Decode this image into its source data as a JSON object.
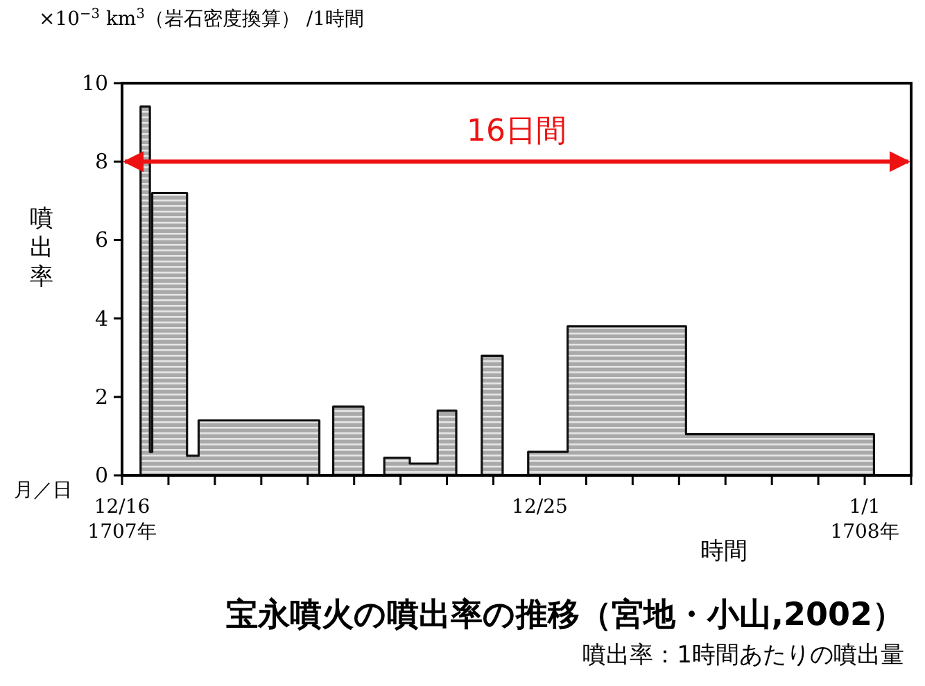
{
  "chart_data": {
    "type": "area",
    "title": "宝永噴火の噴出率の推移（宮地・小山,2002）",
    "xlabel": "時間",
    "ylabel": "噴出率",
    "annotations": [
      "×10$^{−3}$ km$^{3}$（岩石密度換算） /1時間",
      "月／日",
      "噴出率：1時間あたりの噴出量"
    ],
    "x": [
      "1707-12-16T00:00",
      "1707-12-16T09:36",
      "1707-12-16T09:36",
      "1707-12-16T14:24",
      "1707-12-16T14:24",
      "1707-12-16T15:36",
      "1707-12-16T15:36",
      "1707-12-17T09:36",
      "1707-12-17T09:36",
      "1707-12-17T15:36",
      "1707-12-17T15:36",
      "1707-12-20T06:00",
      "1707-12-20T06:00",
      "1707-12-20T13:12",
      "1707-12-20T13:12",
      "1707-12-21T04:48",
      "1707-12-21T04:48",
      "1707-12-21T15:36",
      "1707-12-21T15:36",
      "1707-12-22T04:48",
      "1707-12-22T04:48",
      "1707-12-22T19:12",
      "1707-12-22T19:12",
      "1707-12-23T04:48",
      "1707-12-23T04:48",
      "1707-12-23T18:00",
      "1707-12-23T18:00",
      "1707-12-24T04:48",
      "1707-12-24T04:48",
      "1707-12-24T18:00",
      "1707-12-24T18:00",
      "1707-12-25T14:24",
      "1707-12-25T14:24",
      "1707-12-28T03:36",
      "1707-12-28T03:36",
      "1708-01-01T04:48",
      "1708-01-01T04:48",
      "1708-01-02T00:00"
    ],
    "values": [
      0,
      0,
      9.4,
      9.4,
      0.6,
      0.6,
      7.2,
      7.2,
      0.5,
      0.5,
      1.4,
      1.4,
      0,
      0,
      1.75,
      1.75,
      0,
      0,
      0.45,
      0.45,
      0.3,
      0.3,
      1.65,
      1.65,
      0,
      0,
      3.05,
      3.05,
      0,
      0,
      0.6,
      0.6,
      3.8,
      3.8,
      1.05,
      1.05,
      0,
      0
    ],
    "color": "#a9a9a9",
    "xlim": [
      "1707-12-16",
      "1708-01-02"
    ],
    "xticks": [
      {
        "value": "1707-12-16",
        "label": "12/16\n1707年"
      },
      {
        "value": "1707-12-17",
        "label": null
      },
      {
        "value": "1707-12-18",
        "label": null
      },
      {
        "value": "1707-12-19",
        "label": null
      },
      {
        "value": "1707-12-20",
        "label": null
      },
      {
        "value": "1707-12-21",
        "label": null
      },
      {
        "value": "1707-12-22",
        "label": null
      },
      {
        "value": "1707-12-23",
        "label": null
      },
      {
        "value": "1707-12-24",
        "label": null
      },
      {
        "value": "1707-12-25",
        "label": "12/25"
      },
      {
        "value": "1707-12-26",
        "label": null
      },
      {
        "value": "1707-12-27",
        "label": null
      },
      {
        "value": "1707-12-28",
        "label": null
      },
      {
        "value": "1707-12-29",
        "label": null
      },
      {
        "value": "1707-12-30",
        "label": null
      },
      {
        "value": "1707-12-31",
        "label": null
      },
      {
        "value": "1708-01-01",
        "label": "1/1\n1708年"
      },
      {
        "value": "1708-01-02",
        "label": null
      }
    ],
    "ylim": [
      0,
      10
    ],
    "yticks": [
      0,
      2,
      4,
      6,
      8,
      10
    ],
    "ref_lines": [
      {
        "axis": "y",
        "value": 8,
        "label": "16日間",
        "color": "#ee1111"
      }
    ],
    "grid": false
  }
}
